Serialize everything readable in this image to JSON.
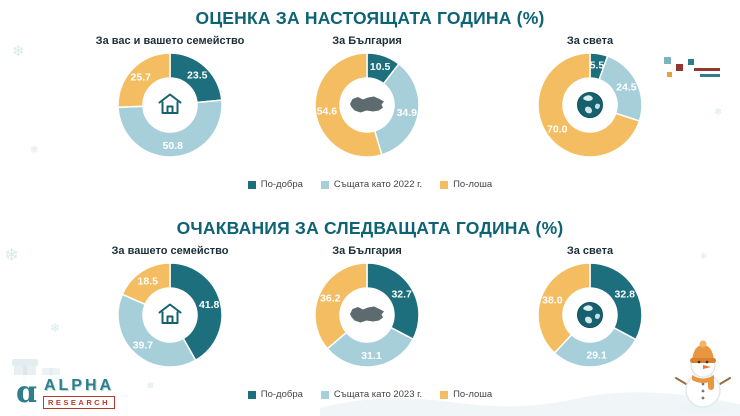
{
  "decorations": {
    "snowflake": "❄"
  },
  "brand": {
    "glyph": "ɑ",
    "name": "ALPHA",
    "sub": "RESEARCH"
  },
  "chart_data": [
    {
      "type": "pie",
      "title": "ОЦЕНКА ЗА НАСТОЯЩАТА ГОДИНА (%)",
      "legend": [
        "По-добра",
        "Същата като 2022 г.",
        "По-лоша"
      ],
      "colors": [
        "#1d6f7e",
        "#a7cfda",
        "#f4bd62"
      ],
      "charts": [
        {
          "label": "За вас и вашето семейство",
          "icon": "house-icon",
          "values": [
            23.5,
            50.8,
            25.7
          ],
          "display": [
            "23.5",
            "50.8",
            "25.7"
          ]
        },
        {
          "label": "За България",
          "icon": "bulgaria-map-icon",
          "values": [
            10.5,
            34.9,
            54.6
          ],
          "display": [
            "10.5",
            "34.9",
            "54.6"
          ]
        },
        {
          "label": "За света",
          "icon": "globe-icon",
          "values": [
            5.5,
            24.5,
            70.0
          ],
          "display": [
            "5.5",
            "24.5",
            "70.0"
          ]
        }
      ]
    },
    {
      "type": "pie",
      "title": "ОЧАКВАНИЯ ЗА СЛЕДВАЩАТА ГОДИНА (%)",
      "legend": [
        "По-добра",
        "Същата като 2023 г.",
        "По-лоша"
      ],
      "colors": [
        "#1d6f7e",
        "#a7cfda",
        "#f4bd62"
      ],
      "charts": [
        {
          "label": "За вашето семейство",
          "icon": "house-icon",
          "values": [
            41.8,
            39.7,
            18.5
          ],
          "display": [
            "41.8",
            "39.7",
            "18.5"
          ]
        },
        {
          "label": "За България",
          "icon": "bulgaria-map-icon",
          "values": [
            32.7,
            31.1,
            36.2
          ],
          "display": [
            "32.7",
            "31.1",
            "36.2"
          ]
        },
        {
          "label": "За света",
          "icon": "globe-icon",
          "values": [
            32.8,
            29.1,
            38.0
          ],
          "display": [
            "32.8",
            "29.1",
            "38.0"
          ]
        }
      ]
    }
  ]
}
